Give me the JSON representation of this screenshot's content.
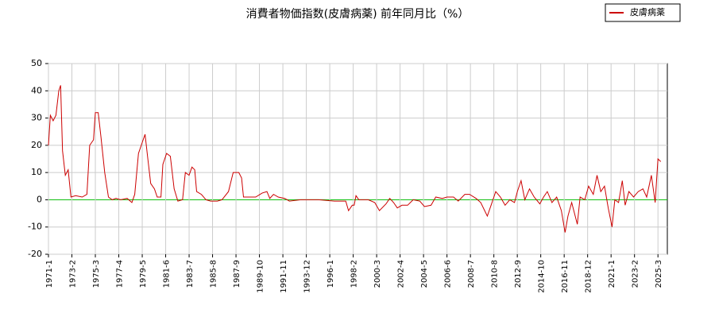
{
  "chart_data": {
    "type": "line",
    "title": "消費者物価指数(皮膚病薬) 前年同月比（%）",
    "x": [
      "1971-1",
      "1971-3",
      "1971-6",
      "1971-9",
      "1971-12",
      "1972-2",
      "1972-4",
      "1972-7",
      "1972-10",
      "1973-1",
      "1973-6",
      "1974-1",
      "1974-6",
      "1974-9",
      "1975-1",
      "1975-3",
      "1975-6",
      "1975-9",
      "1976-1",
      "1976-5",
      "1976-9",
      "1977-1",
      "1977-6",
      "1978-1",
      "1978-6",
      "1978-9",
      "1979-1",
      "1979-5",
      "1979-8",
      "1979-11",
      "1980-2",
      "1980-6",
      "1980-9",
      "1981-1",
      "1981-3",
      "1981-7",
      "1981-11",
      "1982-3",
      "1982-7",
      "1982-12",
      "1983-3",
      "1983-7",
      "1983-10",
      "1984-1",
      "1984-3",
      "1984-8",
      "1985-1",
      "1985-6",
      "1986-1",
      "1986-6",
      "1987-1",
      "1987-6",
      "1987-12",
      "1988-3",
      "1988-5",
      "1989-1",
      "1989-6",
      "1990-1",
      "1990-6",
      "1990-9",
      "1991-1",
      "1991-6",
      "1992-1",
      "1992-6",
      "1993-6",
      "1995-1",
      "1996-6",
      "1997-6",
      "1997-9",
      "1998-1",
      "1998-3",
      "1998-5",
      "1998-8",
      "1999-6",
      "2000-1",
      "2000-6",
      "2001-1",
      "2001-5",
      "2001-9",
      "2002-1",
      "2002-6",
      "2002-12",
      "2003-6",
      "2004-1",
      "2004-6",
      "2005-1",
      "2005-6",
      "2006-1",
      "2006-6",
      "2007-1",
      "2007-6",
      "2008-1",
      "2008-6",
      "2009-1",
      "2009-6",
      "2010-1",
      "2010-6",
      "2010-10",
      "2011-3",
      "2011-8",
      "2012-1",
      "2012-6",
      "2012-9",
      "2013-1",
      "2013-5",
      "2013-10",
      "2014-3",
      "2014-9",
      "2015-1",
      "2015-5",
      "2015-10",
      "2016-3",
      "2016-8",
      "2016-12",
      "2017-3",
      "2017-7",
      "2018-1",
      "2018-4",
      "2018-9",
      "2019-1",
      "2019-6",
      "2019-10",
      "2020-2",
      "2020-6",
      "2020-10",
      "2021-2",
      "2021-5",
      "2021-9",
      "2022-1",
      "2022-4",
      "2022-8",
      "2023-1",
      "2023-6",
      "2023-11",
      "2024-3",
      "2024-8",
      "2024-12",
      "2025-3",
      "2025-6"
    ],
    "series": [
      {
        "name": "皮膚病薬",
        "color": "#cc0000",
        "values": [
          20,
          31,
          29,
          31,
          40,
          42,
          18,
          9,
          11,
          1,
          1.5,
          1,
          2,
          20,
          22,
          32,
          32,
          23,
          10,
          1,
          0,
          0.5,
          0,
          0.5,
          -1,
          2,
          17,
          21,
          24,
          15,
          6,
          4,
          1,
          1,
          13,
          17,
          16,
          4,
          -0.5,
          0,
          10,
          9,
          12,
          11,
          3,
          2,
          0,
          -0.5,
          -0.5,
          0,
          3,
          10,
          10,
          8,
          1,
          1,
          1,
          2.5,
          3,
          0.5,
          2,
          1,
          0.5,
          -0.5,
          0,
          0,
          -0.5,
          -0.5,
          -4,
          -2,
          -2,
          1.5,
          0,
          0,
          -1,
          -4,
          -1.5,
          0.5,
          -1,
          -3,
          -2,
          -2,
          0,
          -0.5,
          -2.5,
          -2,
          1,
          0.5,
          1,
          1,
          -0.5,
          2,
          2,
          0.5,
          -1,
          -6,
          -1,
          3,
          1,
          -2,
          0,
          -1,
          3,
          7,
          0,
          4,
          1,
          -1.5,
          1,
          3,
          -1,
          1,
          -4,
          -12,
          -6,
          -1,
          -9,
          1,
          0,
          5,
          2,
          9,
          3,
          5,
          -3,
          -10,
          0,
          -1,
          7,
          -2,
          3,
          1,
          3,
          4,
          1,
          9,
          -1,
          15,
          14
        ]
      }
    ],
    "xlim": [
      "1971-1",
      "2026-1"
    ],
    "xticks": [
      "1971-1",
      "1973-2",
      "1975-3",
      "1977-4",
      "1979-5",
      "1981-6",
      "1983-7",
      "1985-8",
      "1987-9",
      "1989-10",
      "1991-11",
      "1993-12",
      "1996-1",
      "1998-2",
      "2000-3",
      "2002-4",
      "2004-5",
      "2006-6",
      "2008-7",
      "2010-8",
      "2012-9",
      "2014-10",
      "2016-11",
      "2018-12",
      "2021-1",
      "2023-2",
      "2025-3"
    ],
    "ylim": [
      -20,
      50
    ],
    "yticks": [
      -20,
      -10,
      0,
      10,
      20,
      30,
      40,
      50
    ],
    "grid": true,
    "legend": "upper right"
  }
}
